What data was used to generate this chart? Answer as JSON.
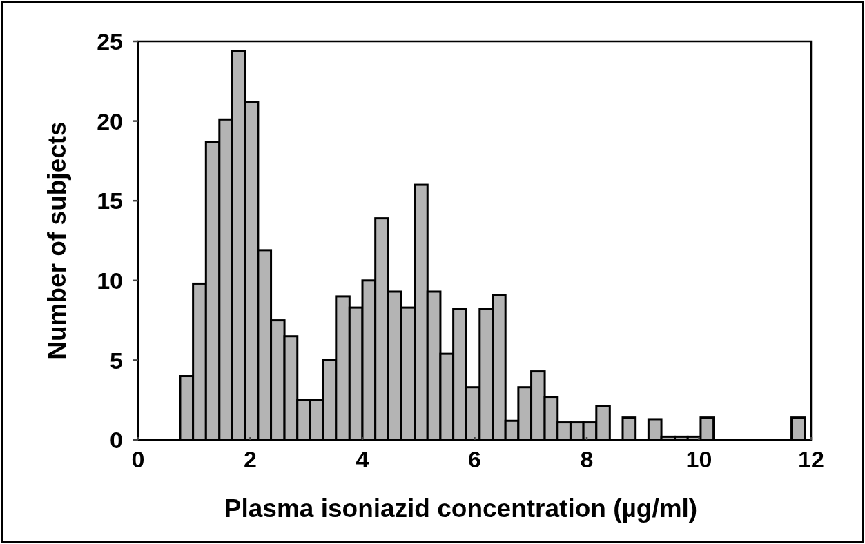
{
  "chart_data": {
    "type": "histogram",
    "xlabel": "Plasma isoniazid concentration (µg/ml)",
    "ylabel": "Number of subjects",
    "bins": [
      0.75,
      0.98,
      1.21,
      1.45,
      1.68,
      1.91,
      2.14,
      2.37,
      2.61,
      2.84,
      3.07,
      3.3,
      3.53,
      3.77,
      4.0,
      4.23,
      4.46,
      4.69,
      4.93,
      5.16,
      5.39,
      5.62,
      5.85,
      6.09,
      6.32,
      6.55,
      6.78,
      7.01,
      7.25,
      7.48,
      7.71,
      7.94,
      8.17,
      8.41,
      8.64,
      8.87,
      9.1,
      9.33,
      9.57,
      9.8,
      10.03,
      10.26,
      11.65,
      11.89
    ],
    "values": [
      4,
      9.8,
      18.7,
      20.1,
      24.4,
      21.2,
      11.9,
      7.5,
      6.5,
      2.5,
      2.5,
      5,
      9,
      8.3,
      10,
      13.9,
      9.3,
      8.3,
      16,
      9.3,
      5.4,
      8.2,
      3.3,
      8.2,
      9.1,
      1.2,
      3.3,
      4.3,
      2.7,
      1.1,
      1.1,
      1.1,
      2.1,
      0,
      1.4,
      0,
      1.3,
      0.2,
      0.2,
      0.2,
      1.4,
      0,
      1.4
    ],
    "color": "#b4b4b4",
    "xlim": [
      0,
      12
    ],
    "xticks": [
      0,
      2,
      4,
      6,
      8,
      10,
      12
    ],
    "ylim": [
      0,
      25
    ],
    "yticks": [
      0,
      5,
      10,
      15,
      20,
      25
    ],
    "grid": false
  }
}
